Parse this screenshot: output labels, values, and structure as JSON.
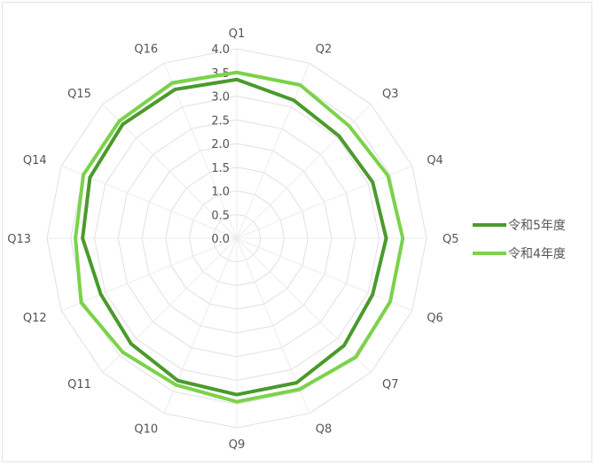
{
  "chart_data": {
    "type": "radar",
    "title": "",
    "categories": [
      "Q1",
      "Q2",
      "Q3",
      "Q4",
      "Q5",
      "Q6",
      "Q7",
      "Q8",
      "Q9",
      "Q10",
      "Q11",
      "Q12",
      "Q13",
      "Q14",
      "Q15",
      "Q16"
    ],
    "rlim": [
      0,
      4.0
    ],
    "ticks": [
      "0.0",
      "0.5",
      "1.0",
      "1.5",
      "2.0",
      "2.5",
      "3.0",
      "3.5",
      "4.0"
    ],
    "grid": true,
    "legend_position": "right",
    "series": [
      {
        "name": "令和5年度",
        "color": "#4a9a2c",
        "values": [
          3.35,
          3.15,
          3.05,
          3.1,
          3.15,
          3.1,
          3.2,
          3.3,
          3.3,
          3.25,
          3.15,
          3.1,
          3.25,
          3.35,
          3.4,
          3.4
        ]
      },
      {
        "name": "令和4年度",
        "color": "#7bd24a",
        "values": [
          3.5,
          3.5,
          3.35,
          3.45,
          3.5,
          3.5,
          3.55,
          3.45,
          3.45,
          3.35,
          3.4,
          3.55,
          3.4,
          3.5,
          3.5,
          3.55
        ]
      }
    ]
  }
}
